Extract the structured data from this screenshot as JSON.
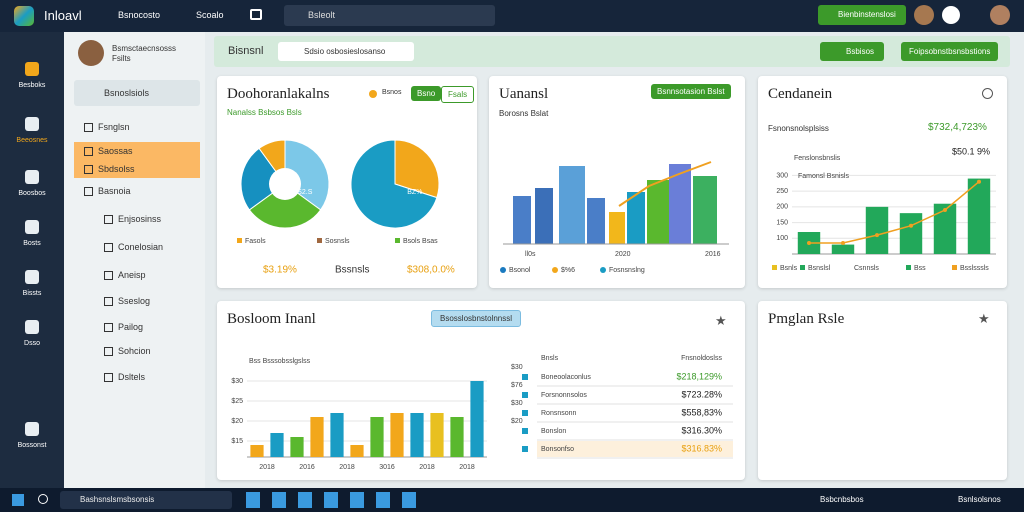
{
  "topbar": {
    "logo": "Inloavl",
    "nav": [
      "Bsnocosto",
      "Scoalo"
    ],
    "search": "Bsleolt",
    "action": "Bienbinstenslosi"
  },
  "rail": [
    "Besboks",
    "Beeosnes",
    "Boosbos",
    "Bosts",
    "Bissts",
    "Dsso",
    "Bossonst"
  ],
  "sidebar": {
    "profile_name": "Bsmsctaecnsosss",
    "profile_sub": "Fsilts",
    "search": "Bsnoslsiols",
    "items": [
      "Fsnglsn",
      "Saossas",
      "Sbdsolss",
      "Basnoia",
      "Enjsosinss",
      "Conelosian",
      "Aneisp",
      "Sseslog",
      "Pailog",
      "Sohcion",
      "Dsltels"
    ]
  },
  "header": {
    "title": "Bisnsnl",
    "filter": "Sdsio osbosieslosanso",
    "buttons": [
      "Bsbisos",
      "Foipsobnstbsnsbstions"
    ]
  },
  "card1": {
    "title": "Doohoranlakalns",
    "legend": "Bsnos",
    "buttons": [
      "Bsno",
      "Fsals"
    ],
    "subtitle": "Nanalss Bsbsos Bsls",
    "pie1": {
      "type": "pie",
      "values": [
        35,
        30,
        25,
        10
      ],
      "colors": [
        "#7cc8e8",
        "#5ab82e",
        "#1690c0",
        "#f2a71b"
      ],
      "label": "S2.S"
    },
    "pie2": {
      "type": "pie",
      "values": [
        30,
        70
      ],
      "colors": [
        "#f2a71b",
        "#1a9cc4"
      ],
      "label": "BZ%"
    },
    "legend_items": [
      "Fasols",
      "Sosnsls",
      "Bsols Bsas"
    ],
    "stats": [
      "$3.19%",
      "Bssnsls",
      "$308,0.0%"
    ]
  },
  "card2": {
    "title": "Uanansl",
    "button": "Bsnnsotasion Bslst",
    "subtitle": "Borosns Bslat",
    "x_labels": [
      "ll0s",
      "2020",
      "2016"
    ],
    "legend": [
      "Bsonol",
      "$%6",
      "Fosnsnslng"
    ]
  },
  "card3": {
    "title": "Cendanein",
    "row_label": "Fsnonsnolsplsiss",
    "row_value": "$732,4,723%",
    "chart": {
      "type": "bar",
      "title": "Fenslonsbnslis",
      "subtitle": "Famonsl Bsnisls",
      "value_label": "$50.1 9%",
      "values": [
        120,
        80,
        200,
        180,
        210,
        290
      ],
      "colors": [
        "#22a85a",
        "#22a85a",
        "#22a85a",
        "#22a85a",
        "#22a85a",
        "#22a85a"
      ],
      "line_values": [
        85,
        85,
        110,
        140,
        190,
        280
      ],
      "line_color": "#f0a020",
      "ylim": [
        50,
        330
      ],
      "yticks": [
        100,
        150,
        200,
        250,
        300
      ]
    },
    "legend": [
      "Bsnls",
      "Bsnslsl",
      "Csnnsls",
      "Bss",
      "Bsslsssls"
    ]
  },
  "card4": {
    "title": "Bosloom Inanl",
    "pill": "Bsosslosbnstolnnssl",
    "chart": {
      "type": "bar",
      "title": "Bss Bsssobsslgslss",
      "categories": [
        "2018",
        null,
        "2016",
        null,
        "2018",
        null,
        "3016",
        null,
        "2018",
        null,
        "2018",
        null
      ],
      "values": [
        14,
        17,
        16,
        21,
        22,
        14,
        21,
        22,
        22,
        22,
        21,
        30
      ],
      "colors": [
        "#f2a71b",
        "#1a9cc4",
        "#5ab82e",
        "#f2a71b",
        "#1a9cc4",
        "#f2a71b",
        "#5ab82e",
        "#f2a71b",
        "#1a9cc4",
        "#e8c020",
        "#5ab82e",
        "#1a9cc4"
      ],
      "ylim": [
        11,
        33
      ],
      "yticks": [
        {
          "value": 15,
          "label": "$15"
        },
        {
          "value": 20,
          "label": "$20"
        },
        {
          "value": 25,
          "label": "$25"
        },
        {
          "value": 30,
          "label": "$30"
        }
      ]
    },
    "table": {
      "headers": [
        "Bnsls",
        "Fnsnoldoslss"
      ],
      "ticks": [
        "$30",
        "$76",
        "$30",
        "$20"
      ],
      "rows": [
        [
          "Boneoolaconlus",
          "$218,129%"
        ],
        [
          "Forsnonnsolos",
          "$723.28%"
        ],
        [
          "Ronsnsonn",
          "$558,83%"
        ],
        [
          "Bonslon",
          "$316.30%"
        ],
        [
          "Bonsonfso",
          "$316.83%"
        ]
      ]
    }
  },
  "card5": {
    "title": "Pmglan Rsle"
  },
  "taskbar": {
    "search": "Bashsnslsmsbsonsis",
    "tray": [
      "Bsbcnbsbos",
      "Bsnlsolsnos"
    ]
  }
}
